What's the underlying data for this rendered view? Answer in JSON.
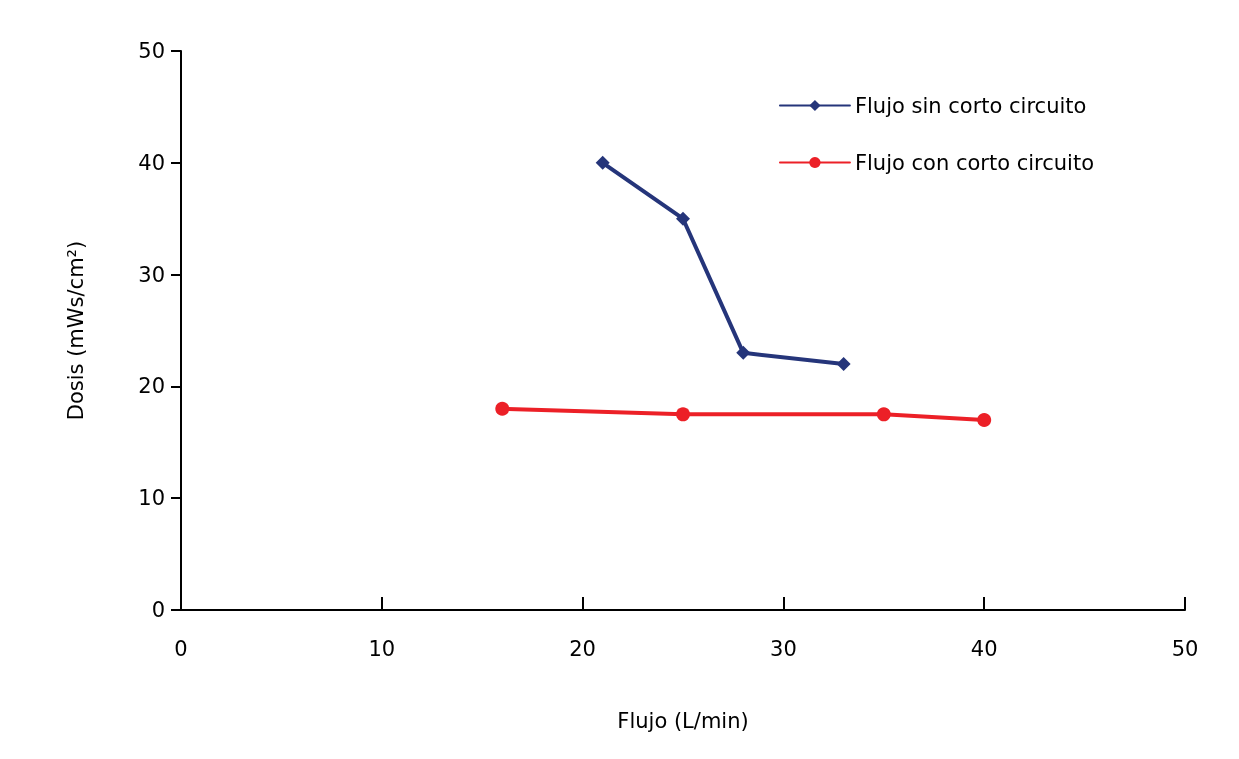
{
  "chart_data": {
    "type": "line",
    "xlabel": "Flujo (L/min)",
    "ylabel": "Dosis (mWs/cm²)",
    "xlim": [
      0,
      50
    ],
    "xticks": [
      0,
      10,
      20,
      30,
      40,
      50
    ],
    "ylim": [
      0,
      50
    ],
    "yticks": [
      0,
      10,
      20,
      30,
      40,
      50
    ],
    "grid": false,
    "legend": "top right",
    "line_style": "solid",
    "series": [
      {
        "name": "Flujo sin corto circuito",
        "color": "#25357a",
        "marker": "diamond",
        "x": [
          21,
          25,
          28,
          33
        ],
        "values": [
          40,
          35,
          23,
          22
        ]
      },
      {
        "name": "Flujo con corto circuito",
        "color": "#ec2027",
        "marker": "circle",
        "x": [
          16,
          25,
          35,
          40
        ],
        "values": [
          18,
          17.5,
          17.5,
          17
        ]
      }
    ]
  }
}
